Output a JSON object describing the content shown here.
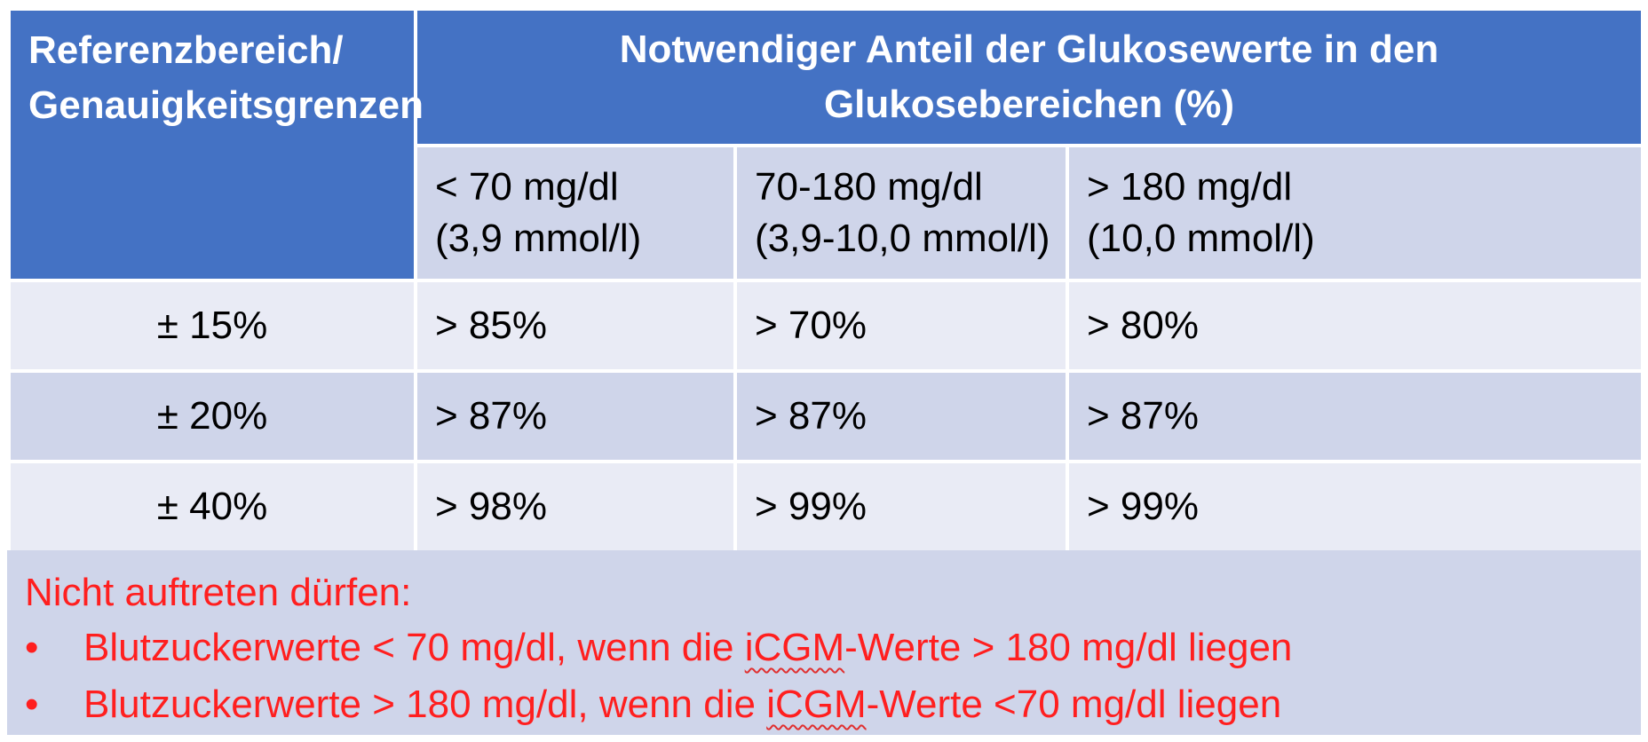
{
  "table": {
    "header_left_line1": "Referenzbereich/",
    "header_left_line2": "Genauigkeitsgrenzen",
    "header_top_line1": "Notwendiger Anteil der Glukosewerte in den",
    "header_top_line2": "Glukosebereichen (%)",
    "columns": [
      {
        "line1": "< 70 mg/dl",
        "line2": "(3,9 mmol/l)"
      },
      {
        "line1": "70-180 mg/dl",
        "line2": "(3,9-10,0 mmol/l)"
      },
      {
        "line1": "> 180 mg/dl",
        "line2": "(10,0 mmol/l)"
      }
    ],
    "rows": [
      {
        "ref": "± 15%",
        "values": [
          "> 85%",
          "> 70%",
          "> 80%"
        ]
      },
      {
        "ref": "± 20%",
        "values": [
          "> 87%",
          "> 87%",
          "> 87%"
        ]
      },
      {
        "ref": "± 40%",
        "values": [
          "> 98%",
          "> 99%",
          "> 99%"
        ]
      }
    ]
  },
  "note": {
    "title": "Nicht auftreten dürfen:",
    "bullet_char": "•",
    "bullets": [
      {
        "pre": "Blutzuckerwerte  < 70 mg/dl, wenn die ",
        "term": "iCGM",
        "post": "-Werte > 180 mg/dl liegen"
      },
      {
        "pre": "Blutzuckerwerte  > 180 mg/dl, wenn die ",
        "term": "iCGM",
        "post": "-Werte <70 mg/dl liegen"
      }
    ]
  },
  "colors": {
    "header_blue": "#4472c4",
    "band_dark": "#cfd5ea",
    "band_light": "#e9ebf5",
    "note_red": "#ff1f1f"
  }
}
